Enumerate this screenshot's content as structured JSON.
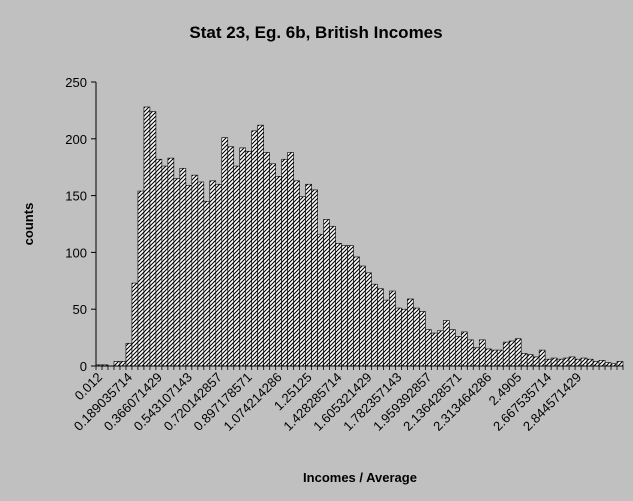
{
  "chart_data": {
    "type": "bar",
    "title": "Stat 23, Eg. 6b, British Incomes",
    "xlabel": "Incomes / Average",
    "ylabel": "counts",
    "ylim": [
      0,
      250
    ],
    "yticks": [
      0,
      50,
      100,
      150,
      200,
      250
    ],
    "x_tick_labels": [
      "0.012",
      "0.189035714",
      "0.366071429",
      "0.543107143",
      "0.720142857",
      "0.897178571",
      "1.074214286",
      "1.25125",
      "1.428285714",
      "1.605321429",
      "1.782357143",
      "1.959392857",
      "2.136428571",
      "2.313464286",
      "2.4905",
      "2.667535714",
      "2.844571429"
    ],
    "x_tick_every": 5,
    "grid": false,
    "legend": "none",
    "bar_pattern": "diagonal-hatch",
    "colors": {
      "background": "#c0c0c0",
      "bar_fill": "#ffffff",
      "hatch": "#000000",
      "axis": "#000000"
    },
    "values": [
      1,
      1,
      0,
      4,
      4,
      20,
      73,
      154,
      228,
      224,
      182,
      176,
      183,
      165,
      174,
      159,
      168,
      162,
      145,
      163,
      160,
      201,
      193,
      176,
      192,
      189,
      207,
      212,
      188,
      178,
      167,
      182,
      188,
      163,
      149,
      160,
      155,
      116,
      129,
      123,
      108,
      106,
      106,
      96,
      88,
      82,
      72,
      68,
      58,
      66,
      51,
      50,
      59,
      51,
      48,
      32,
      29,
      31,
      40,
      32,
      26,
      30,
      23,
      16,
      23,
      15,
      14,
      14,
      21,
      22,
      24,
      11,
      10,
      8,
      14,
      6,
      7,
      6,
      7,
      8,
      6,
      7,
      6,
      4,
      5,
      3,
      2,
      4
    ]
  }
}
